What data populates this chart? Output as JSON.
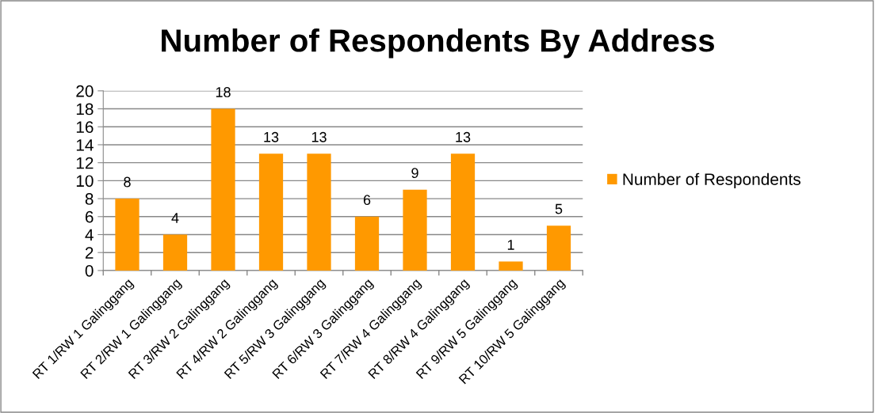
{
  "chart_data": {
    "type": "bar",
    "title": "Number of Respondents By Address",
    "categories": [
      "RT 1/RW 1 Galinggang",
      "RT 2/RW 1 Galinggang",
      "RT 3/RW 2 Galinggang",
      "RT 4/RW 2 Galinggang",
      "RT 5/RW 3 Galinggang",
      "RT 6/RW 3 Galinggang",
      "RT 7/RW 4 Galinggang",
      "RT 8/RW 4 Galinggang",
      "RT 9/RW 5 Galinggang",
      "RT 10/RW 5 Galinggang"
    ],
    "series": [
      {
        "name": "Number of Respondents",
        "color": "#ff9900",
        "values": [
          8,
          4,
          18,
          13,
          13,
          6,
          9,
          13,
          1,
          5
        ]
      }
    ],
    "ylim": [
      0,
      20
    ],
    "yticks": [
      0,
      2,
      4,
      6,
      8,
      10,
      12,
      14,
      16,
      18,
      20
    ],
    "grid": "y",
    "legend": "right",
    "data_labels": true
  }
}
